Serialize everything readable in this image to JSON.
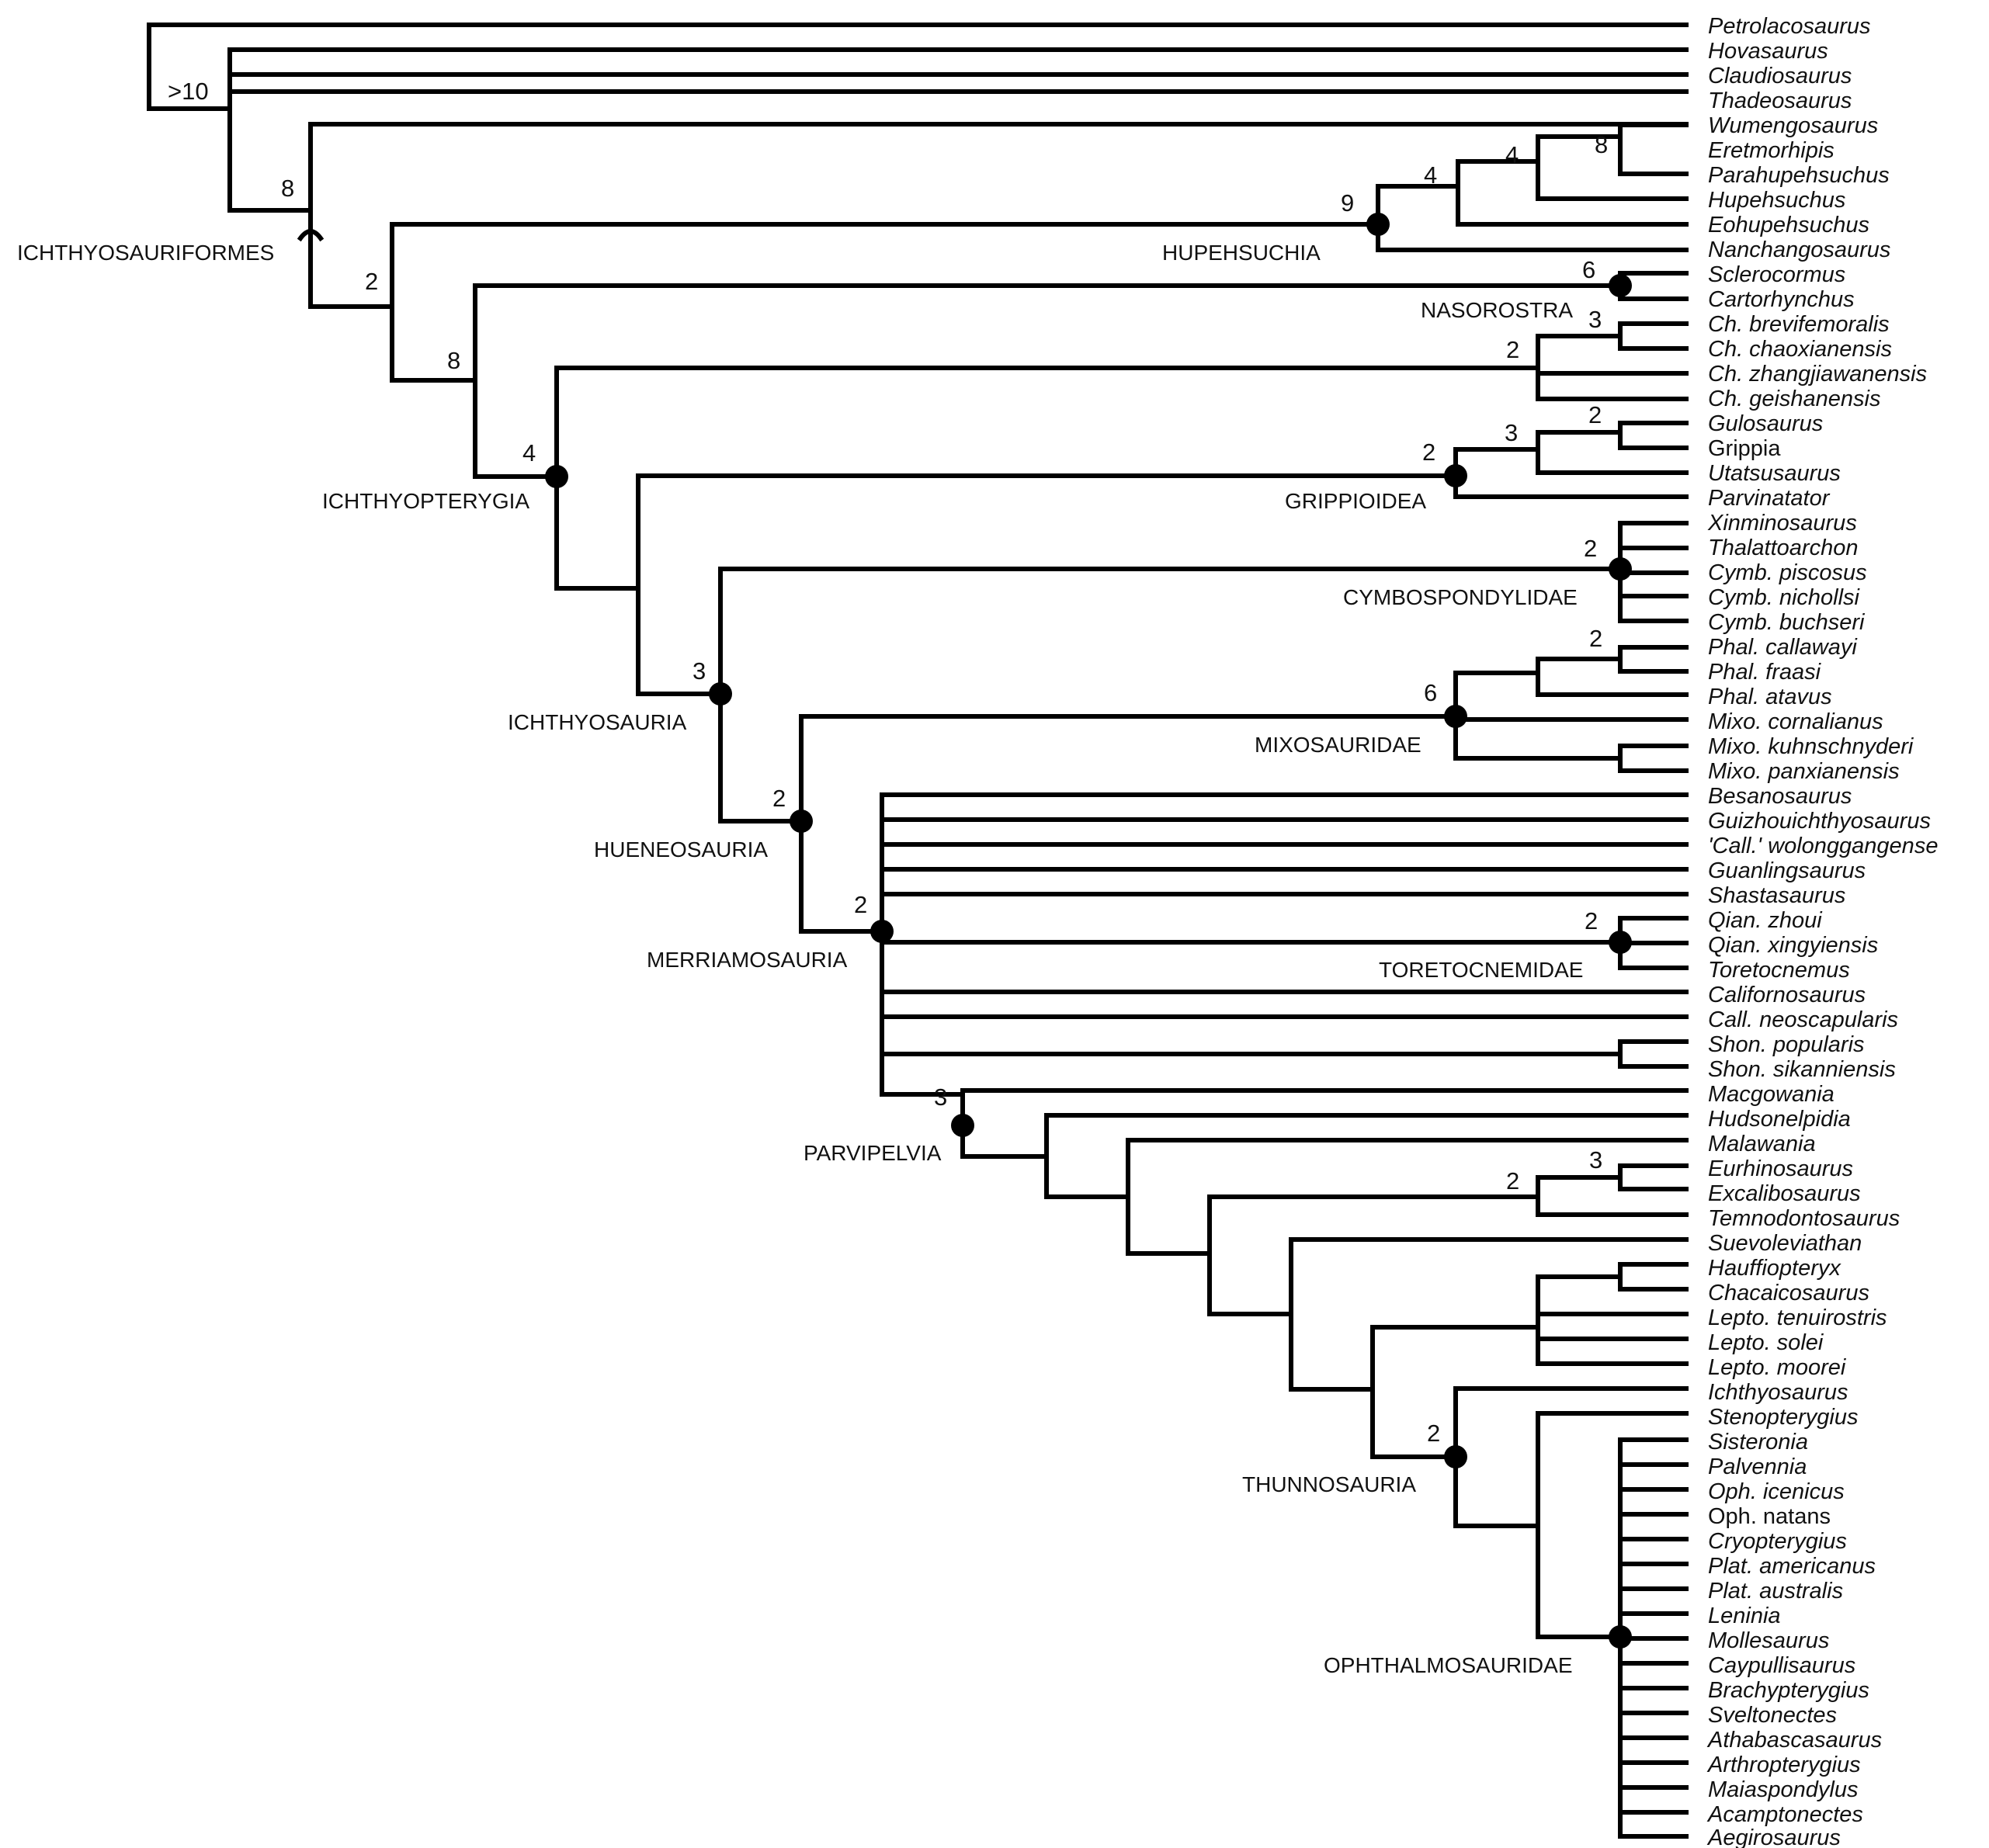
{
  "figure": {
    "description_type": "cladogram",
    "root_support": ">10",
    "ichthyosauriformes_support": "8"
  },
  "taxa": [
    "Petrolacosaurus",
    "Hovasaurus",
    "Claudiosaurus",
    "Thadeosaurus",
    "Wumengosaurus",
    "Eretmorhipis",
    "Parahupehsuchus",
    "Hupehsuchus",
    "Eohupehsuchus",
    "Nanchangosaurus",
    "Sclerocormus",
    "Cartorhynchus",
    "Ch. brevifemoralis",
    "Ch. chaoxianensis",
    "Ch. zhangjiawanensis",
    "Ch. geishanensis",
    "Gulosaurus",
    "Grippia",
    "Utatsusaurus",
    "Parvinatator",
    "Xinminosaurus",
    "Thalattoarchon",
    "Cymb. piscosus",
    "Cymb. nichollsi",
    "Cymb. buchseri",
    "Phal. callawayi",
    "Phal. fraasi",
    "Phal. atavus",
    "Mixo. cornalianus",
    "Mixo. kuhnschnyderi",
    "Mixo. panxianensis",
    "Besanosaurus",
    "Guizhouichthyosaurus",
    "'Call.' wolonggangense",
    "Guanlingsaurus",
    "Shastasaurus",
    "Qian. zhoui",
    "Qian. xingyiensis",
    "Toretocnemus",
    "Californosaurus",
    "Call. neoscapularis",
    "Shon. popularis",
    "Shon. sikanniensis",
    "Macgowania",
    "Hudsonelpidia",
    "Malawania",
    "Eurhinosaurus",
    "Excalibosaurus",
    "Temnodontosaurus",
    "Suevoleviathan",
    "Hauffiopteryx",
    "Chacaicosaurus",
    "Lepto. tenuirostris",
    "Lepto. solei",
    "Lepto. moorei",
    "Ichthyosaurus",
    "Stenopterygius",
    "Sisteronia",
    "Palvennia",
    "Oph. icenicus",
    "Oph. natans",
    "Cryopterygius",
    "Plat. americanus",
    "Plat. australis",
    "Leninia",
    "Mollesaurus",
    "Caypullisaurus",
    "Brachypterygius",
    "Sveltonectes",
    "Athabascasaurus",
    "Arthropterygius",
    "Maiaspondylus",
    "Acamptonectes",
    "Aegirosaurus"
  ],
  "clades": [
    "ICHTHYOSAURIFORMES",
    "HUPEHSUCHIA",
    "NASOROSTRA",
    "ICHTHYOPTERYGIA",
    "GRIPPIOIDEA",
    "CYMBOSPONDYLIDAE",
    "ICHTHYOSAURIA",
    "MIXOSAURIDAE",
    "HUENEOSAURIA",
    "TORETOCNEMIDAE",
    "MERRIAMOSAURIA",
    "PARVIPELVIA",
    "THUNNOSAURIA",
    "OPHTHALMOSAURIDAE"
  ],
  "support": [
    "8",
    "2",
    "9",
    "4",
    "4",
    "8",
    "8",
    "6",
    "4",
    "2",
    "3",
    "2",
    "3",
    "2",
    "2",
    "3",
    "6",
    "2",
    "2",
    "2",
    "2",
    "3",
    "2",
    "3",
    "2"
  ]
}
